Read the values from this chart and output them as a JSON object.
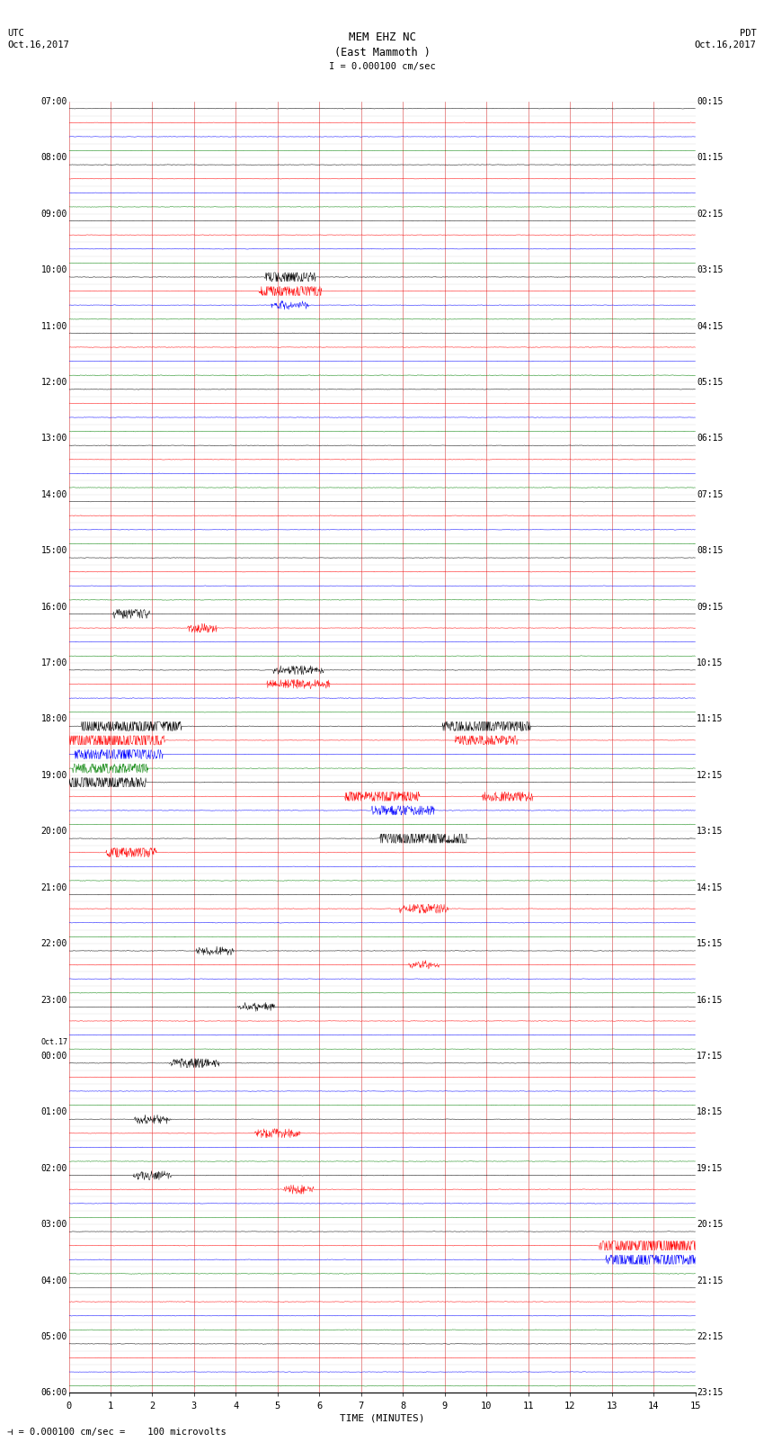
{
  "title_line1": "MEM EHZ NC",
  "title_line2": "(East Mammoth )",
  "scale_label": "I = 0.000100 cm/sec",
  "left_header_line1": "UTC",
  "left_header_line2": "Oct.16,2017",
  "right_header_line1": "PDT",
  "right_header_line2": "Oct.16,2017",
  "bottom_label": "TIME (MINUTES)",
  "footer_label": "⊣ = 0.000100 cm/sec =    100 microvolts",
  "trace_colors": [
    "black",
    "red",
    "blue",
    "green"
  ],
  "bg_color": "#ffffff",
  "n_rows": 92,
  "x_ticks": [
    0,
    1,
    2,
    3,
    4,
    5,
    6,
    7,
    8,
    9,
    10,
    11,
    12,
    13,
    14,
    15
  ],
  "figsize": [
    8.5,
    16.13
  ],
  "dpi": 100,
  "utc_hour_labels": [
    [
      0,
      "07:00"
    ],
    [
      4,
      "08:00"
    ],
    [
      8,
      "09:00"
    ],
    [
      12,
      "10:00"
    ],
    [
      16,
      "11:00"
    ],
    [
      20,
      "12:00"
    ],
    [
      24,
      "13:00"
    ],
    [
      28,
      "14:00"
    ],
    [
      32,
      "15:00"
    ],
    [
      36,
      "16:00"
    ],
    [
      40,
      "17:00"
    ],
    [
      44,
      "18:00"
    ],
    [
      48,
      "19:00"
    ],
    [
      52,
      "20:00"
    ],
    [
      56,
      "21:00"
    ],
    [
      60,
      "22:00"
    ],
    [
      64,
      "23:00"
    ],
    [
      67,
      "Oct.17"
    ],
    [
      68,
      "00:00"
    ],
    [
      72,
      "01:00"
    ],
    [
      76,
      "02:00"
    ],
    [
      80,
      "03:00"
    ],
    [
      84,
      "04:00"
    ],
    [
      88,
      "05:00"
    ],
    [
      92,
      "06:00"
    ]
  ],
  "pdt_hour_labels": [
    [
      0,
      "00:15"
    ],
    [
      4,
      "01:15"
    ],
    [
      8,
      "02:15"
    ],
    [
      12,
      "03:15"
    ],
    [
      16,
      "04:15"
    ],
    [
      20,
      "05:15"
    ],
    [
      24,
      "06:15"
    ],
    [
      28,
      "07:15"
    ],
    [
      32,
      "08:15"
    ],
    [
      36,
      "09:15"
    ],
    [
      40,
      "10:15"
    ],
    [
      44,
      "11:15"
    ],
    [
      48,
      "12:15"
    ],
    [
      52,
      "13:15"
    ],
    [
      56,
      "14:15"
    ],
    [
      60,
      "15:15"
    ],
    [
      64,
      "16:15"
    ],
    [
      68,
      "17:15"
    ],
    [
      72,
      "18:15"
    ],
    [
      76,
      "19:15"
    ],
    [
      80,
      "20:15"
    ],
    [
      84,
      "21:15"
    ],
    [
      88,
      "22:15"
    ],
    [
      92,
      "23:15"
    ]
  ]
}
